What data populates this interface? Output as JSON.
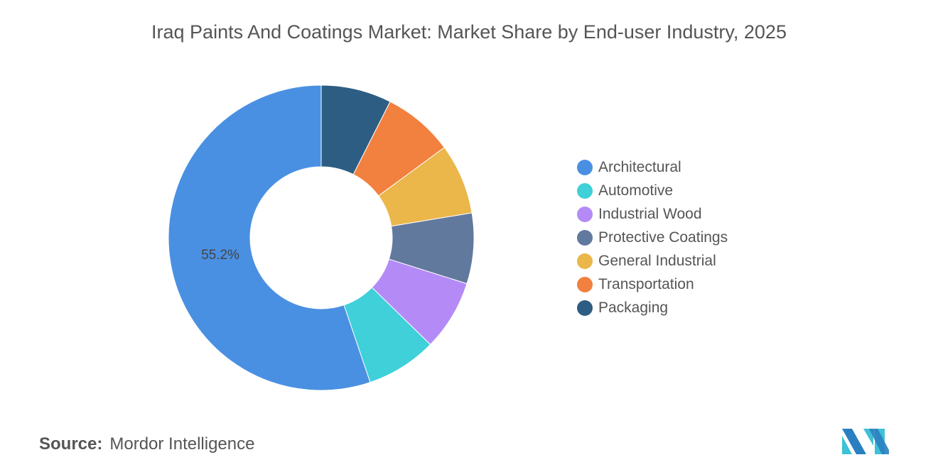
{
  "chart_data": {
    "type": "pie",
    "variant": "donut",
    "title": "Iraq Paints And Coatings Market: Market Share by End-user Industry, 2025",
    "categories": [
      "Architectural",
      "Automotive",
      "Industrial Wood",
      "Protective Coatings",
      "General Industrial",
      "Transportation",
      "Packaging"
    ],
    "values": [
      55.2,
      7.47,
      7.47,
      7.47,
      7.47,
      7.47,
      7.45
    ],
    "data_labels": [
      "55.2%",
      "",
      "",
      "",
      "",
      "",
      ""
    ],
    "colors": [
      "#4a90e2",
      "#3fd0d9",
      "#b48af7",
      "#62799e",
      "#ebb64a",
      "#f2803f",
      "#2d5d82"
    ],
    "legend_position": "right"
  },
  "source": {
    "label": "Source:",
    "text": "Mordor Intelligence"
  }
}
